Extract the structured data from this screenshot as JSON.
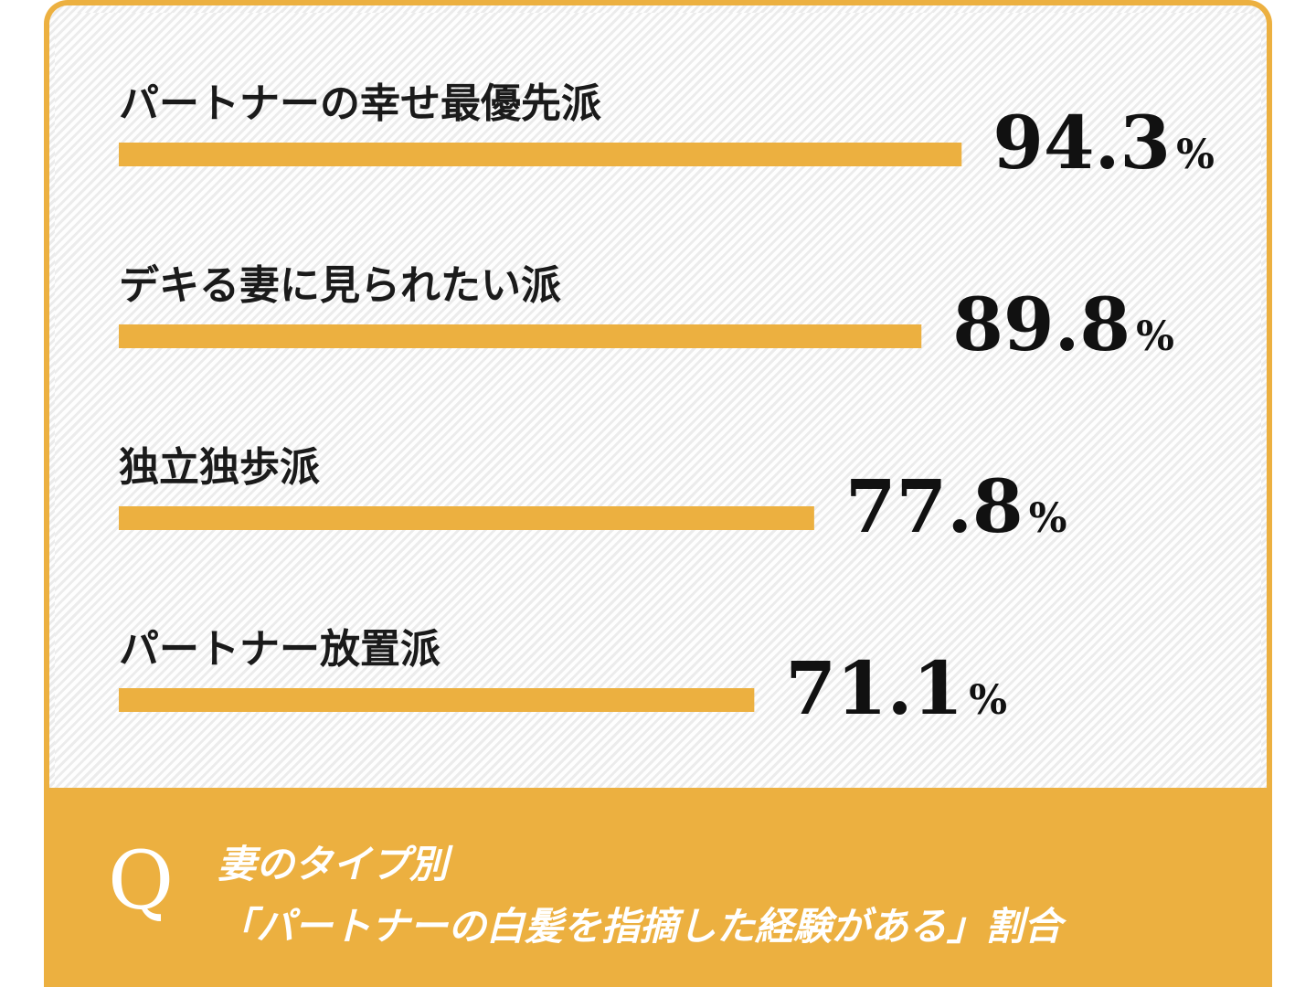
{
  "colors": {
    "accent": "#ecb040",
    "text": "#111111",
    "footer_text": "#ffffff"
  },
  "chart_data": {
    "type": "bar",
    "orientation": "horizontal",
    "categories": [
      "パートナーの幸せ最優先派",
      "デキる妻に見られたい派",
      "独立独歩派",
      "パートナー放置派"
    ],
    "values": [
      94.3,
      89.8,
      77.8,
      71.1
    ],
    "value_labels": [
      "94.3",
      "89.8",
      "77.8",
      "71.1"
    ],
    "unit": "%",
    "xlim": [
      0,
      100
    ],
    "grid": false,
    "legend": "none"
  },
  "question": {
    "mark": "Q",
    "line1": "妻のタイプ別",
    "line2": "「パートナーの白髪を指摘した経験がある」割合"
  }
}
